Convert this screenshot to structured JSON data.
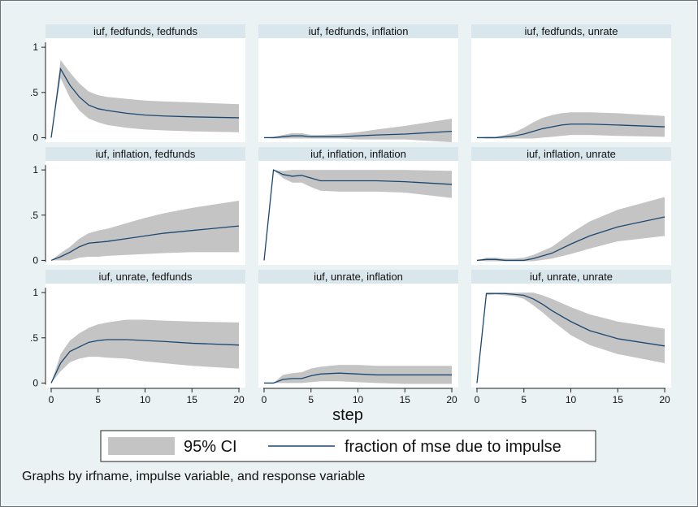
{
  "chart_data": {
    "type": "line",
    "xlabel": "step",
    "note": "Graphs by irfname, impulse variable, and response variable",
    "legend": {
      "placement": "bottom",
      "ci_label": "95% CI",
      "line_label": "fraction of mse due to impulse"
    },
    "colors": {
      "background": "#eaf2f3",
      "plot_area": "#ffffff",
      "strip": "#d9e6eb",
      "band": "#c4c4c4",
      "line": "#1a476f"
    },
    "x_ticks": [
      0,
      5,
      10,
      15,
      20
    ],
    "y_ticks": [
      {
        "value": 0,
        "label": "0"
      },
      {
        "value": 0.5,
        "label": ".5"
      },
      {
        "value": 1,
        "label": "1"
      }
    ],
    "xlim": [
      0,
      20
    ],
    "ylim": [
      -0.05,
      1.1
    ],
    "grid": false,
    "panels": [
      {
        "title": "iuf, fedfunds, fedfunds",
        "x": [
          0,
          1,
          2,
          3,
          4,
          5,
          6,
          8,
          10,
          12,
          15,
          20
        ],
        "y": [
          0,
          0.76,
          0.58,
          0.45,
          0.36,
          0.32,
          0.3,
          0.27,
          0.25,
          0.24,
          0.23,
          0.22
        ],
        "lower": [
          0,
          0.66,
          0.44,
          0.3,
          0.21,
          0.17,
          0.14,
          0.11,
          0.09,
          0.08,
          0.07,
          0.06
        ],
        "upper": [
          0,
          0.86,
          0.72,
          0.6,
          0.51,
          0.47,
          0.45,
          0.43,
          0.41,
          0.4,
          0.39,
          0.37
        ]
      },
      {
        "title": "iuf, fedfunds, inflation",
        "x": [
          0,
          1,
          2,
          3,
          4,
          5,
          6,
          8,
          10,
          12,
          15,
          20
        ],
        "y": [
          0,
          0,
          0.01,
          0.02,
          0.02,
          0.01,
          0.01,
          0.01,
          0.02,
          0.03,
          0.04,
          0.07
        ],
        "lower": [
          0,
          -0.01,
          -0.01,
          -0.01,
          -0.01,
          -0.01,
          -0.01,
          -0.01,
          -0.02,
          -0.02,
          -0.02,
          -0.05
        ],
        "upper": [
          0,
          0.01,
          0.03,
          0.05,
          0.05,
          0.03,
          0.03,
          0.04,
          0.06,
          0.09,
          0.13,
          0.21
        ]
      },
      {
        "title": "iuf, fedfunds, unrate",
        "x": [
          0,
          1,
          2,
          3,
          4,
          5,
          6,
          7,
          8,
          9,
          10,
          12,
          15,
          20
        ],
        "y": [
          0,
          0,
          0,
          0.01,
          0.02,
          0.04,
          0.07,
          0.1,
          0.12,
          0.14,
          0.15,
          0.15,
          0.14,
          0.12
        ],
        "lower": [
          0,
          -0.01,
          -0.01,
          -0.01,
          -0.01,
          -0.01,
          -0.01,
          0,
          0.01,
          0.02,
          0.03,
          0.03,
          0.02,
          0.01
        ],
        "upper": [
          0,
          0.01,
          0.01,
          0.03,
          0.06,
          0.11,
          0.17,
          0.22,
          0.25,
          0.27,
          0.28,
          0.28,
          0.27,
          0.24
        ]
      },
      {
        "title": "iuf, inflation, fedfunds",
        "x": [
          0,
          1,
          2,
          3,
          4,
          5,
          6,
          8,
          10,
          12,
          15,
          20
        ],
        "y": [
          0,
          0.04,
          0.09,
          0.15,
          0.19,
          0.2,
          0.21,
          0.24,
          0.27,
          0.3,
          0.33,
          0.38
        ],
        "lower": [
          0,
          0,
          0,
          0.03,
          0.04,
          0.04,
          0.05,
          0.06,
          0.07,
          0.08,
          0.09,
          0.09
        ],
        "upper": [
          0,
          0.08,
          0.15,
          0.24,
          0.3,
          0.33,
          0.35,
          0.41,
          0.47,
          0.52,
          0.58,
          0.66
        ]
      },
      {
        "title": "iuf, inflation, inflation",
        "x": [
          0,
          1,
          2,
          3,
          4,
          5,
          6,
          8,
          10,
          12,
          15,
          20
        ],
        "y": [
          0,
          1.0,
          0.95,
          0.93,
          0.94,
          0.91,
          0.88,
          0.88,
          0.88,
          0.88,
          0.87,
          0.84
        ],
        "lower": [
          0,
          1.0,
          0.91,
          0.86,
          0.86,
          0.81,
          0.77,
          0.76,
          0.76,
          0.76,
          0.75,
          0.69
        ],
        "upper": [
          0,
          1.0,
          0.99,
          1.0,
          1.0,
          1.0,
          1.0,
          1.0,
          1.0,
          1.0,
          1.0,
          0.99
        ]
      },
      {
        "title": "iuf, inflation, unrate",
        "x": [
          0,
          1,
          2,
          3,
          4,
          5,
          6,
          8,
          10,
          12,
          15,
          20
        ],
        "y": [
          0,
          0.01,
          0.01,
          0,
          0,
          0,
          0.02,
          0.08,
          0.18,
          0.27,
          0.37,
          0.48
        ],
        "lower": [
          0,
          -0.01,
          -0.01,
          -0.01,
          -0.01,
          -0.01,
          -0.01,
          0.02,
          0.07,
          0.13,
          0.21,
          0.27
        ],
        "upper": [
          0,
          0.03,
          0.03,
          0.02,
          0.02,
          0.03,
          0.06,
          0.15,
          0.3,
          0.43,
          0.56,
          0.7
        ]
      },
      {
        "title": "iuf, unrate, fedfunds",
        "x": [
          0,
          1,
          2,
          3,
          4,
          5,
          6,
          8,
          10,
          12,
          15,
          20
        ],
        "y": [
          0,
          0.22,
          0.35,
          0.4,
          0.45,
          0.47,
          0.48,
          0.48,
          0.47,
          0.46,
          0.44,
          0.42
        ],
        "lower": [
          0,
          0.13,
          0.23,
          0.27,
          0.29,
          0.29,
          0.28,
          0.27,
          0.24,
          0.22,
          0.19,
          0.16
        ],
        "upper": [
          0,
          0.32,
          0.47,
          0.55,
          0.61,
          0.65,
          0.67,
          0.7,
          0.7,
          0.69,
          0.68,
          0.67
        ]
      },
      {
        "title": "iuf, unrate, inflation",
        "x": [
          0,
          1,
          2,
          3,
          4,
          5,
          6,
          8,
          10,
          12,
          15,
          20
        ],
        "y": [
          0,
          0,
          0.04,
          0.05,
          0.05,
          0.08,
          0.1,
          0.11,
          0.1,
          0.09,
          0.09,
          0.09
        ],
        "lower": [
          0,
          0,
          0,
          0,
          0,
          0.01,
          0.02,
          0.02,
          0.01,
          0,
          -0.01,
          -0.01
        ],
        "upper": [
          0,
          0,
          0.09,
          0.11,
          0.12,
          0.16,
          0.18,
          0.2,
          0.2,
          0.19,
          0.19,
          0.19
        ]
      },
      {
        "title": "iuf, unrate, unrate",
        "x": [
          0,
          1,
          2,
          3,
          4,
          5,
          6,
          7,
          8,
          10,
          12,
          15,
          20
        ],
        "y": [
          0,
          0.99,
          0.99,
          0.99,
          0.98,
          0.97,
          0.93,
          0.87,
          0.8,
          0.68,
          0.58,
          0.49,
          0.41
        ],
        "lower": [
          0,
          0.97,
          0.98,
          0.97,
          0.96,
          0.93,
          0.86,
          0.78,
          0.69,
          0.53,
          0.42,
          0.32,
          0.22
        ],
        "upper": [
          0,
          1.0,
          1.0,
          1.0,
          1.0,
          1.0,
          1.0,
          0.97,
          0.93,
          0.84,
          0.76,
          0.68,
          0.6
        ]
      }
    ]
  }
}
